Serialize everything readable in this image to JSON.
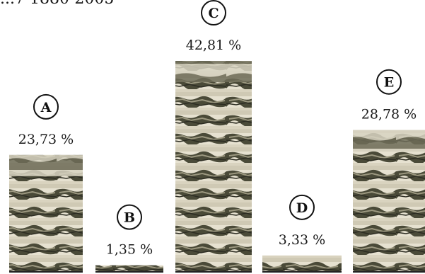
{
  "header": {
    "title": "...7 1880-2005"
  },
  "colors": {
    "bar_light": "#e8e4d6",
    "bar_dark": "#3a3a2c",
    "bar_mid": "#8c8a72",
    "baseline": "#222222",
    "badge_stroke": "#111111"
  },
  "chart_data": {
    "type": "bar",
    "categories": [
      "A",
      "B",
      "C",
      "D",
      "E"
    ],
    "values": [
      23.73,
      1.35,
      42.81,
      3.33,
      28.78
    ],
    "value_labels": [
      "23,73 %",
      "1,35 %",
      "42,81 %",
      "3,33 %",
      "28,78 %"
    ],
    "unit": "%",
    "ylim": [
      0,
      45
    ],
    "grid": false,
    "legend": "none"
  }
}
